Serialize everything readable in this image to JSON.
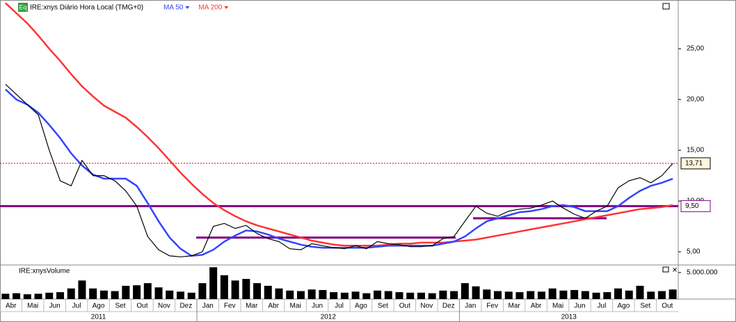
{
  "chart_data": [
    {
      "type": "line",
      "badge": "Eq",
      "title": "IRE:xnys Diário Hora Local (TMG+0)",
      "categories": [
        "Abr",
        null,
        "Mai",
        null,
        "Jun",
        null,
        "Jul",
        null,
        "Ago",
        null,
        "Set",
        null,
        "Out",
        null,
        "Nov",
        null,
        "Dez",
        null,
        "Jan",
        null,
        "Fev",
        null,
        "Mar",
        null,
        "Abr",
        null,
        "Mai",
        null,
        "Jun",
        null,
        "Jul",
        null,
        "Ago",
        null,
        "Set",
        null,
        "Out",
        null,
        "Nov",
        null,
        "Dez",
        null,
        "Jan",
        null,
        "Fev",
        null,
        "Mar",
        null,
        "Abr",
        null,
        "Mai",
        null,
        "Jun",
        null,
        "Jul",
        null,
        "Ago",
        null,
        "Set",
        null,
        "Out",
        null
      ],
      "years": [
        "2011",
        "2012",
        "2013"
      ],
      "series": [
        {
          "color": "#000000",
          "values": [
            21.5,
            20.5,
            19.5,
            18.5,
            15,
            12,
            11.5,
            14,
            12.5,
            12.5,
            12,
            11,
            9.5,
            6.5,
            5.2,
            4.6,
            4.5,
            4.6,
            5.0,
            7.5,
            7.8,
            7.3,
            7.6,
            6.8,
            6.3,
            6.0,
            5.3,
            5.2,
            5.8,
            5.6,
            5.4,
            5.3,
            5.6,
            5.3,
            6.0,
            5.8,
            5.7,
            5.5,
            5.5,
            5.6,
            6.3,
            6.5,
            8.0,
            9.5,
            8.8,
            8.5,
            9.0,
            9.2,
            9.3,
            9.6,
            10.0,
            9.3,
            8.7,
            8.3,
            9.0,
            9.5,
            11.3,
            12.0,
            12.3,
            11.8,
            12.5,
            13.7
          ]
        },
        {
          "name": "MA 50",
          "color": "#3344ff",
          "values": [
            21,
            20,
            19.5,
            18.7,
            17.5,
            16.2,
            14.7,
            13.5,
            12.6,
            12.2,
            12.2,
            12.2,
            11.5,
            9.8,
            8.0,
            6.4,
            5.3,
            4.6,
            4.7,
            5.2,
            6.0,
            6.6,
            7.1,
            7.0,
            6.7,
            6.3,
            6.0,
            5.7,
            5.5,
            5.4,
            5.4,
            5.4,
            5.4,
            5.4,
            5.5,
            5.6,
            5.6,
            5.6,
            5.6,
            5.6,
            5.8,
            6.0,
            6.5,
            7.3,
            8.0,
            8.3,
            8.6,
            8.9,
            9.0,
            9.2,
            9.5,
            9.6,
            9.4,
            9.0,
            9.0,
            9.0,
            9.5,
            10.3,
            11.0,
            11.5,
            11.8,
            12.2
          ]
        },
        {
          "name": "MA 200",
          "color": "#ff3333",
          "values": [
            29.5,
            28.5,
            27.5,
            26.3,
            25,
            23.8,
            22.5,
            21.3,
            20.3,
            19.4,
            18.8,
            18.2,
            17.3,
            16.3,
            15.2,
            14,
            12.8,
            11.7,
            10.7,
            9.8,
            9.1,
            8.5,
            8.0,
            7.6,
            7.3,
            7.0,
            6.7,
            6.4,
            6.1,
            5.9,
            5.7,
            5.6,
            5.6,
            5.6,
            5.6,
            5.7,
            5.8,
            5.8,
            5.9,
            5.9,
            5.9,
            6.0,
            6.1,
            6.2,
            6.4,
            6.6,
            6.8,
            7.0,
            7.2,
            7.4,
            7.6,
            7.8,
            8.0,
            8.2,
            8.4,
            8.6,
            8.8,
            9.0,
            9.2,
            9.3,
            9.4,
            9.6
          ]
        }
      ],
      "ylim": [
        3.77,
        29.8
      ],
      "yticks": [
        {
          "value": 5,
          "label": "5,00"
        },
        {
          "value": 10,
          "label": "10,00"
        },
        {
          "value": 15,
          "label": "15,00"
        },
        {
          "value": 20,
          "label": "20,00"
        },
        {
          "value": 25,
          "label": "25,00"
        }
      ],
      "levels": [
        {
          "value": 9.5,
          "label": "9,50",
          "color": "#800080"
        }
      ],
      "last_price": {
        "value": 13.71,
        "label": "13,71",
        "color": "#cc0000"
      },
      "trendlines": [
        {
          "value": 6.4,
          "color": "#800080"
        },
        {
          "value": 8.3,
          "color": "#800080"
        }
      ]
    },
    {
      "type": "bar",
      "title": "IRE:xnysVolume",
      "color": "#000000",
      "values": [
        1000000.0,
        1100000.0,
        900000.0,
        1000000.0,
        1200000.0,
        1300000.0,
        2000000.0,
        3500000.0,
        2000000.0,
        1600000.0,
        1500000.0,
        2500000.0,
        2600000.0,
        3000000.0,
        2200000.0,
        1600000.0,
        1400000.0,
        1200000.0,
        3000000.0,
        6000000.0,
        4500000.0,
        3500000.0,
        3800000.0,
        3000000.0,
        2500000.0,
        2000000.0,
        1600000.0,
        1500000.0,
        1800000.0,
        1700000.0,
        1300000.0,
        1200000.0,
        1400000.0,
        1100000.0,
        1600000.0,
        1500000.0,
        1300000.0,
        1200000.0,
        1200000.0,
        1100000.0,
        1600000.0,
        1500000.0,
        3000000.0,
        2400000.0,
        1800000.0,
        1500000.0,
        1400000.0,
        1300000.0,
        1500000.0,
        1400000.0,
        2000000.0,
        1600000.0,
        1700000.0,
        1500000.0,
        1200000.0,
        1300000.0,
        2000000.0,
        1600000.0,
        2500000.0,
        1400000.0,
        1500000.0,
        1800000.0
      ],
      "ylim": [
        0,
        6300000
      ],
      "yticks": [
        {
          "value": 5000000,
          "label": "5.000.000"
        }
      ]
    }
  ]
}
